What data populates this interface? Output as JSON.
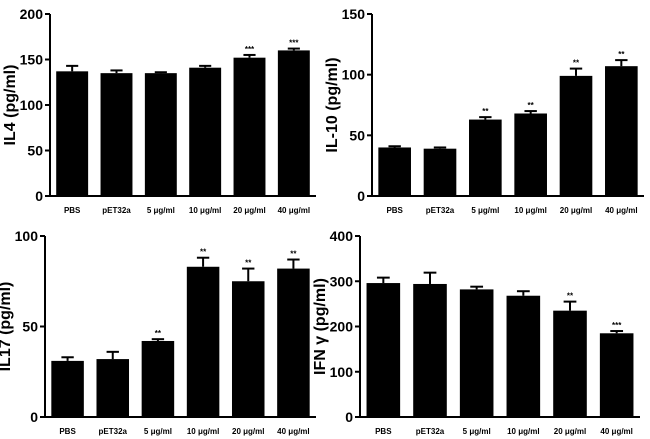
{
  "chart_data": [
    {
      "type": "bar",
      "ylabel": "IL4 (pg/ml)",
      "ylim": [
        0,
        200
      ],
      "yticks": [
        0,
        50,
        100,
        150,
        200
      ],
      "categories": [
        "PBS",
        "pET32a",
        "5 μg/ml",
        "10 μg/ml",
        "20 μg/ml",
        "40 μg/ml"
      ],
      "values": [
        137,
        135,
        135,
        141,
        152,
        160
      ],
      "errors": [
        6,
        3,
        1,
        2,
        3,
        2
      ],
      "significance": [
        "",
        "",
        "",
        "",
        "***",
        "***"
      ]
    },
    {
      "type": "bar",
      "ylabel": "IL-10 (pg/ml)",
      "ylim": [
        0,
        150
      ],
      "yticks": [
        0,
        50,
        100,
        150
      ],
      "categories": [
        "PBS",
        "pET32a",
        "5 μg/ml",
        "10 μg/ml",
        "20 μg/ml",
        "40 μg/ml"
      ],
      "values": [
        40,
        39,
        63,
        68,
        99,
        107
      ],
      "errors": [
        1,
        1,
        2,
        2,
        6,
        5
      ],
      "significance": [
        "",
        "",
        "**",
        "**",
        "**",
        "**"
      ]
    },
    {
      "type": "bar",
      "ylabel": "IL17 (pg/ml)",
      "ylim": [
        0,
        100
      ],
      "yticks": [
        0,
        50,
        100
      ],
      "categories": [
        "PBS",
        "pET32a",
        "5 μg/ml",
        "10 μg/ml",
        "20 μg/ml",
        "40 μg/ml"
      ],
      "values": [
        31,
        32,
        42,
        83,
        75,
        82
      ],
      "errors": [
        2,
        4,
        1,
        5,
        7,
        5
      ],
      "significance": [
        "",
        "",
        "**",
        "**",
        "**",
        "**"
      ]
    },
    {
      "type": "bar",
      "ylabel": "IFN γ (pg/ml)",
      "ylim": [
        0,
        400
      ],
      "yticks": [
        0,
        100,
        200,
        300,
        400
      ],
      "categories": [
        "PBS",
        "pET32a",
        "5 μg/ml",
        "10 μg/ml",
        "20 μg/ml",
        "40 μg/ml"
      ],
      "values": [
        296,
        294,
        282,
        268,
        235,
        185
      ],
      "errors": [
        12,
        25,
        6,
        10,
        20,
        5
      ],
      "significance": [
        "",
        "",
        "",
        "",
        "**",
        "***"
      ]
    }
  ],
  "colors": {
    "bar": "#000000",
    "axis": "#000000"
  }
}
